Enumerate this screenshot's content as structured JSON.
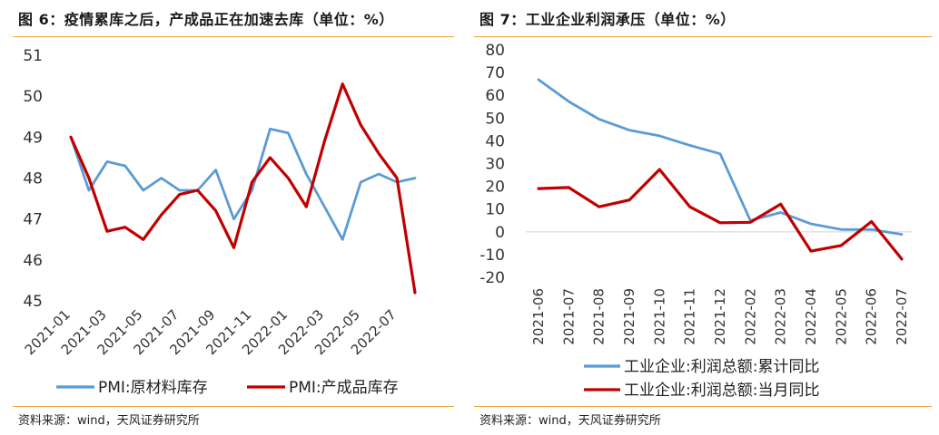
{
  "left": {
    "title": "图 6：疫情累库之后，产成品正在加速去库（单位：%）",
    "source": "资料来源：wind，天风证券研究所",
    "chart_data": {
      "type": "line",
      "title": "图 6：疫情累库之后，产成品正在加速去库（单位：%）",
      "xlabel": "",
      "ylabel": "",
      "ylim": [
        45,
        51
      ],
      "yticks": [
        "45",
        "46",
        "47",
        "48",
        "49",
        "50",
        "51"
      ],
      "grid": false,
      "legend_position": "bottom",
      "x": [
        "2021-01",
        "2021-02",
        "2021-03",
        "2021-04",
        "2021-05",
        "2021-06",
        "2021-07",
        "2021-08",
        "2021-09",
        "2021-10",
        "2021-11",
        "2021-12",
        "2022-01",
        "2022-02",
        "2022-03",
        "2022-04",
        "2022-05",
        "2022-06",
        "2022-07",
        "2022-08"
      ],
      "tick_labels": [
        "2021-01",
        "2021-03",
        "2021-05",
        "2021-07",
        "2021-09",
        "2021-11",
        "2022-01",
        "2022-03",
        "2022-05",
        "2022-07"
      ],
      "series": [
        {
          "name": "PMI:原材料库存",
          "color": "#5b9bd5",
          "values": [
            49.0,
            47.7,
            48.4,
            48.3,
            47.7,
            48.0,
            47.7,
            47.7,
            48.2,
            47.0,
            47.7,
            49.2,
            49.1,
            48.1,
            47.3,
            46.5,
            47.9,
            48.1,
            47.9,
            48.0
          ]
        },
        {
          "name": "PMI:产成品库存",
          "color": "#c00000",
          "values": [
            49.0,
            48.0,
            46.7,
            46.8,
            46.5,
            47.1,
            47.6,
            47.7,
            47.2,
            46.3,
            47.9,
            48.5,
            48.0,
            47.3,
            48.9,
            50.3,
            49.3,
            48.6,
            48.0,
            45.2
          ]
        }
      ]
    }
  },
  "right": {
    "title": "图 7：工业企业利润承压（单位：%）",
    "source": "资料来源：wind，天风证券研究所",
    "chart_data": {
      "type": "line",
      "title": "图 7：工业企业利润承压（单位：%）",
      "xlabel": "",
      "ylabel": "",
      "ylim": [
        -20,
        80
      ],
      "yticks": [
        "-20",
        "-10",
        "0",
        "10",
        "20",
        "30",
        "40",
        "50",
        "60",
        "70",
        "80"
      ],
      "grid": false,
      "legend_position": "bottom",
      "x": [
        "2021-06",
        "2021-07",
        "2021-08",
        "2021-09",
        "2021-10",
        "2021-11",
        "2021-12",
        "2022-02",
        "2022-03",
        "2022-04",
        "2022-05",
        "2022-06",
        "2022-07"
      ],
      "series": [
        {
          "name": "工业企业:利润总额:累计同比",
          "color": "#5b9bd5",
          "values": [
            66.9,
            57.3,
            49.5,
            44.7,
            42.2,
            38.0,
            34.3,
            5.0,
            8.5,
            3.5,
            1.0,
            1.0,
            -1.1
          ]
        },
        {
          "name": "工业企业:利润总额:当月同比",
          "color": "#c00000",
          "values": [
            19.0,
            19.5,
            11.0,
            14.0,
            27.4,
            11.0,
            4.0,
            4.2,
            12.2,
            -8.5,
            -6.0,
            4.5,
            -12.0
          ]
        }
      ]
    }
  }
}
